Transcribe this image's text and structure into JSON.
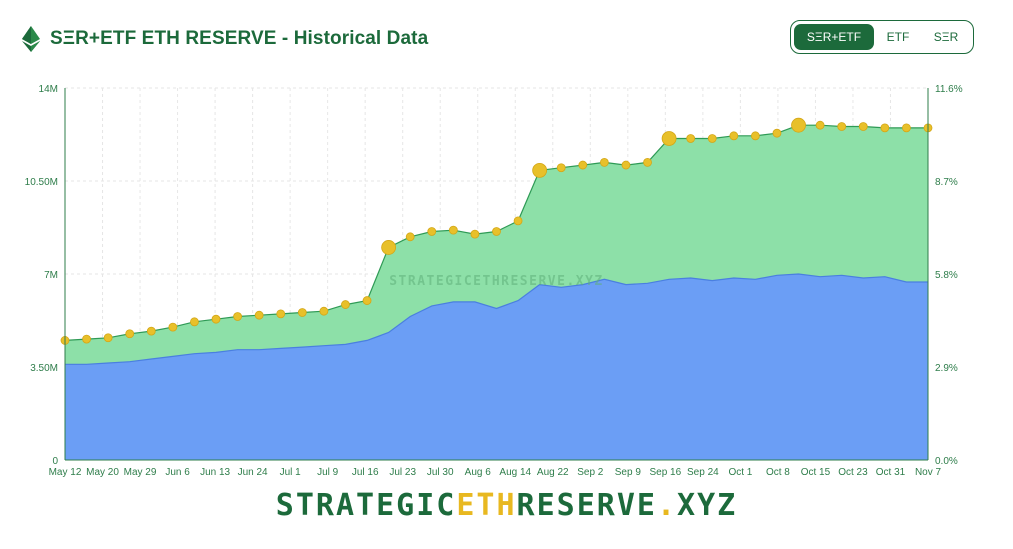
{
  "header": {
    "title": "SΞR+ETF ETH RESERVE - Historical Data"
  },
  "toggle": {
    "options": [
      "SΞR+ETF",
      "ETF",
      "SΞR"
    ],
    "selected": 0
  },
  "brand": {
    "part1": "STRATEGIC",
    "part2": "ETH",
    "part3": "RESERVE",
    "part4": ".",
    "part5": "XYZ"
  },
  "colors": {
    "accent": "#1c6a3b",
    "etf_area": "#6b9ef5",
    "ser_area": "#8de0a8",
    "dot": "#e8c02a"
  },
  "chart_data": {
    "type": "area",
    "watermark": "STRATEGICETHRESERVE.XYZ",
    "stacked": true,
    "x_tick_labels": [
      "May 12",
      "May 20",
      "May 29",
      "Jun 6",
      "Jun 13",
      "Jun 24",
      "Jul 1",
      "Jul 9",
      "Jul 16",
      "Jul 23",
      "Jul 30",
      "Aug 6",
      "Aug 14",
      "Aug 22",
      "Sep 2",
      "Sep 9",
      "Sep 16",
      "Sep 24",
      "Oct 1",
      "Oct 8",
      "Oct 15",
      "Oct 23",
      "Oct 31",
      "Nov 7"
    ],
    "y_left_ticks": [
      "0",
      "3.50M",
      "7M",
      "10.50M",
      "14M"
    ],
    "y_left_range": [
      0,
      14000000
    ],
    "y_right_ticks": [
      "0.0%",
      "2.9%",
      "5.8%",
      "8.7%",
      "11.6%"
    ],
    "y_right_range": [
      0,
      11.6
    ],
    "grid": true,
    "series": [
      {
        "values": [
          3.6,
          3.6,
          3.65,
          3.7,
          3.8,
          3.9,
          4.0,
          4.05,
          4.15,
          4.15,
          4.2,
          4.25,
          4.3,
          4.35,
          4.5,
          4.8,
          5.4,
          5.8,
          5.95,
          5.95,
          5.7,
          6.0,
          6.6,
          6.5,
          6.6,
          6.8,
          6.6,
          6.65,
          6.8,
          6.85,
          6.75,
          6.85,
          6.8,
          6.95,
          7.0,
          6.9,
          6.95,
          6.85,
          6.9,
          6.7,
          6.7
        ]
      },
      {
        "values": [
          4.5,
          4.55,
          4.6,
          4.75,
          4.85,
          5.0,
          5.2,
          5.3,
          5.4,
          5.45,
          5.5,
          5.55,
          5.6,
          5.85,
          6.0,
          8.0,
          8.4,
          8.6,
          8.65,
          8.5,
          8.6,
          9.0,
          10.9,
          11.0,
          11.1,
          11.2,
          11.1,
          11.2,
          12.1,
          12.1,
          12.1,
          12.2,
          12.2,
          12.3,
          12.6,
          12.6,
          12.55,
          12.55,
          12.5,
          12.5,
          12.5
        ]
      }
    ]
  }
}
